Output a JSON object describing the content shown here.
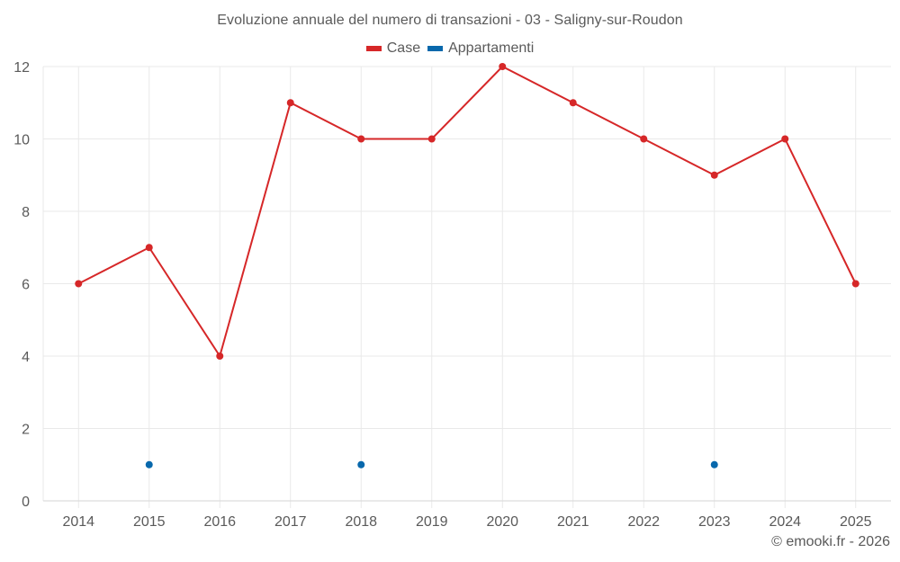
{
  "title": "Evoluzione annuale del numero di transazioni - 03 - Saligny-sur-Roudon",
  "legend": [
    {
      "label": "Case",
      "color": "#d62728"
    },
    {
      "label": "Appartamenti",
      "color": "#0868ac"
    }
  ],
  "credit": "© emooki.fr - 2026",
  "colors": {
    "grid": "#e9e9e9",
    "axis": "#d6d6d6",
    "text": "#5a5a5a"
  },
  "chart_data": {
    "type": "line",
    "title": "Evoluzione annuale del numero di transazioni - 03 - Saligny-sur-Roudon",
    "xlabel": "",
    "ylabel": "",
    "categories": [
      "2014",
      "2015",
      "2016",
      "2017",
      "2018",
      "2019",
      "2020",
      "2021",
      "2022",
      "2023",
      "2024",
      "2025"
    ],
    "series": [
      {
        "name": "Case",
        "color": "#d62728",
        "values": [
          6,
          7,
          4,
          11,
          10,
          10,
          12,
          11,
          10,
          9,
          10,
          6
        ]
      },
      {
        "name": "Appartamenti",
        "color": "#0868ac",
        "values": [
          null,
          1,
          null,
          null,
          1,
          null,
          null,
          null,
          null,
          1,
          null,
          null
        ]
      }
    ],
    "ylim": [
      0,
      12
    ],
    "yticks": [
      0,
      2,
      4,
      6,
      8,
      10,
      12
    ],
    "grid": true,
    "legend_position": "top"
  }
}
